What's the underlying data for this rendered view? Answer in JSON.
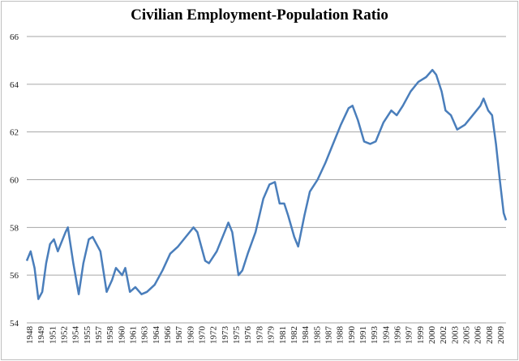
{
  "chart_data": {
    "type": "line",
    "title": "Civilian Employment-Population Ratio",
    "xlabel": "",
    "ylabel": "",
    "ylim": [
      54,
      66
    ],
    "yticks": [
      "54",
      "56",
      "58",
      "60",
      "62",
      "64",
      "66"
    ],
    "xlim": [
      1948.0,
      2009.8
    ],
    "xticks": [
      "1948",
      "1949",
      "1951",
      "1952",
      "1954",
      "1955",
      "1957",
      "1958",
      "1960",
      "1961",
      "1963",
      "1964",
      "1966",
      "1967",
      "1969",
      "1970",
      "1972",
      "1973",
      "1975",
      "1976",
      "1978",
      "1979",
      "1981",
      "1982",
      "1984",
      "1985",
      "1987",
      "1988",
      "1990",
      "1991",
      "1993",
      "1994",
      "1996",
      "1997",
      "1999",
      "2000",
      "2002",
      "2003",
      "2005",
      "2006",
      "2008",
      "2009"
    ],
    "grid": true,
    "legend": "none",
    "line_color": "#4a7ebb",
    "series": [
      {
        "x": [
          1948.0,
          1948.5,
          1949.0,
          1949.5,
          1950.0,
          1950.5,
          1951.0,
          1951.5,
          1952.0,
          1953.0,
          1953.3,
          1954.0,
          1954.7,
          1955.3,
          1956.0,
          1956.5,
          1957.5,
          1958.3,
          1959.0,
          1959.5,
          1960.3,
          1960.7,
          1961.3,
          1962.0,
          1962.8,
          1963.5,
          1964.5,
          1965.5,
          1966.5,
          1967.5,
          1968.5,
          1969.5,
          1970.0,
          1971.0,
          1971.5,
          1972.5,
          1973.5,
          1974.0,
          1974.5,
          1975.3,
          1975.8,
          1976.5,
          1977.5,
          1978.5,
          1979.3,
          1980.0,
          1980.6,
          1981.2,
          1981.7,
          1982.5,
          1983.0,
          1983.8,
          1984.5,
          1985.5,
          1986.5,
          1987.5,
          1988.5,
          1989.5,
          1990.0,
          1990.7,
          1991.5,
          1992.3,
          1993.0,
          1994.0,
          1995.0,
          1995.7,
          1996.5,
          1997.5,
          1998.5,
          1999.5,
          2000.3,
          2000.8,
          2001.5,
          2002.0,
          2002.7,
          2003.5,
          2004.5,
          2005.5,
          2006.5,
          2006.9,
          2007.5,
          2008.0,
          2008.5,
          2009.0,
          2009.5,
          2009.8
        ],
        "values": [
          56.6,
          57.0,
          56.3,
          55.0,
          55.3,
          56.5,
          57.3,
          57.5,
          57.0,
          57.8,
          58.0,
          56.5,
          55.2,
          56.5,
          57.5,
          57.6,
          57.0,
          55.3,
          55.8,
          56.3,
          56.0,
          56.3,
          55.3,
          55.5,
          55.2,
          55.3,
          55.6,
          56.2,
          56.9,
          57.2,
          57.6,
          58.0,
          57.8,
          56.6,
          56.5,
          57.0,
          57.8,
          58.2,
          57.8,
          56.0,
          56.2,
          56.9,
          57.8,
          59.2,
          59.8,
          59.9,
          59.0,
          59.0,
          58.5,
          57.6,
          57.2,
          58.5,
          59.5,
          60.0,
          60.7,
          61.5,
          62.3,
          63.0,
          63.1,
          62.5,
          61.6,
          61.5,
          61.6,
          62.4,
          62.9,
          62.7,
          63.1,
          63.7,
          64.1,
          64.3,
          64.6,
          64.4,
          63.7,
          62.9,
          62.7,
          62.1,
          62.3,
          62.7,
          63.1,
          63.4,
          62.9,
          62.7,
          61.5,
          60.0,
          58.6,
          58.3
        ]
      }
    ]
  }
}
